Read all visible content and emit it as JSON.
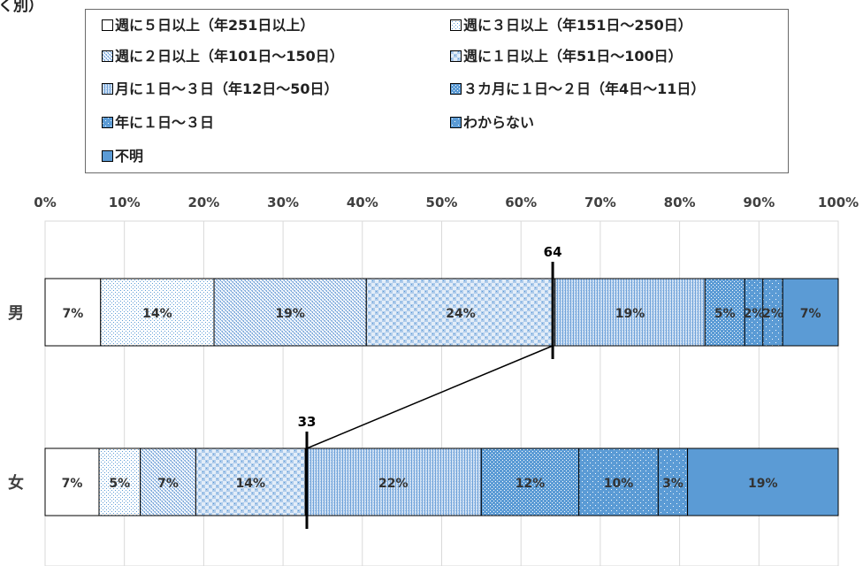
{
  "chart_data": {
    "type": "bar",
    "orientation": "horizontal",
    "stacked": true,
    "title_fragment": "く別）",
    "categories": [
      "男",
      "女"
    ],
    "series": [
      {
        "name": "週に５日以上（年251日以上）",
        "values": [
          7,
          7
        ],
        "pattern": "white"
      },
      {
        "name": "週に３日以上（年151日～250日）",
        "values": [
          14,
          5
        ],
        "pattern": "dots-sparse"
      },
      {
        "name": "週に２日以上（年101日～150日）",
        "values": [
          19,
          7
        ],
        "pattern": "checker-fine"
      },
      {
        "name": "週に１日以上（年51日～100日）",
        "values": [
          24,
          14
        ],
        "pattern": "checker"
      },
      {
        "name": "月に１日～３日（年12日～50日）",
        "values": [
          19,
          22
        ],
        "pattern": "vstripe"
      },
      {
        "name": "３カ月に１日～２日（年4日～11日）",
        "values": [
          5,
          12
        ],
        "pattern": "dots-dense"
      },
      {
        "name": "年に１日～３日",
        "values": [
          2,
          10
        ],
        "pattern": "dots-big"
      },
      {
        "name": "わからない",
        "values": [
          2,
          3
        ],
        "pattern": "dots-light"
      },
      {
        "name": "不明",
        "values": [
          7,
          19
        ],
        "pattern": "solid"
      }
    ],
    "segment_labels": [
      [
        "7%",
        "14%",
        "19%",
        "24%",
        "19%",
        "5%",
        "2%",
        "2%",
        "7%"
      ],
      [
        "7%",
        "5%",
        "7%",
        "14%",
        "22%",
        "12%",
        "10%",
        "3%",
        "19%"
      ]
    ],
    "segment_bounds": [
      [
        0,
        7,
        21.3,
        40.5,
        64.3,
        83.2,
        88.2,
        90.5,
        93,
        100
      ],
      [
        0,
        6.8,
        12,
        19,
        32.8,
        55,
        67.3,
        77.3,
        81,
        100
      ]
    ],
    "markers": [
      {
        "category": "男",
        "value": 64,
        "label": "64"
      },
      {
        "category": "女",
        "value": 33,
        "label": "33"
      }
    ],
    "x_ticks": [
      "0%",
      "10%",
      "20%",
      "30%",
      "40%",
      "50%",
      "60%",
      "70%",
      "80%",
      "90%",
      "100%"
    ],
    "xlim": [
      0,
      100
    ],
    "grid": true,
    "legend_position": "top",
    "colors": {
      "base": "#5b9bd5",
      "bar_border": "#000000",
      "grid": "#d9d9d9",
      "text": "#222222"
    }
  }
}
